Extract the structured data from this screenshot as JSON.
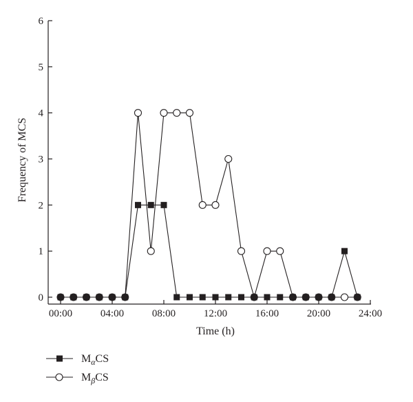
{
  "chart_data": {
    "type": "line",
    "xlabel": "Time (h)",
    "ylabel": "Frequency of MCS",
    "xlim": [
      0,
      24
    ],
    "ylim": [
      0,
      6
    ],
    "x_ticks": [
      0,
      4,
      8,
      12,
      16,
      20,
      24
    ],
    "x_tick_labels": [
      "00:00",
      "04:00",
      "08:00",
      "12:00",
      "16:00",
      "20:00",
      "24:00"
    ],
    "y_ticks": [
      0,
      1,
      2,
      3,
      4,
      5,
      6
    ],
    "y_tick_labels": [
      "0",
      "1",
      "2",
      "3",
      "4",
      "5",
      "6"
    ],
    "x": [
      0,
      1,
      2,
      3,
      4,
      5,
      6,
      7,
      8,
      9,
      10,
      11,
      12,
      13,
      14,
      15,
      16,
      17,
      18,
      19,
      20,
      21,
      22,
      23
    ],
    "series": [
      {
        "name_prefix": "M",
        "name_sub": "α",
        "name_suffix": "CS",
        "marker": "filled-square",
        "values": [
          0,
          0,
          0,
          0,
          0,
          0,
          2,
          2,
          2,
          0,
          0,
          0,
          0,
          0,
          0,
          0,
          0,
          0,
          0,
          0,
          0,
          0,
          1,
          0
        ]
      },
      {
        "name_prefix": "M",
        "name_sub": "β",
        "name_suffix": "CS",
        "marker": "open-circle",
        "values": [
          0,
          0,
          0,
          0,
          0,
          0,
          4,
          1,
          4,
          4,
          4,
          2,
          2,
          3,
          1,
          0,
          1,
          1,
          0,
          0,
          0,
          0,
          0,
          0
        ]
      }
    ],
    "grid": false,
    "legend_position": "bottom-left",
    "line_color": "#231f20"
  }
}
